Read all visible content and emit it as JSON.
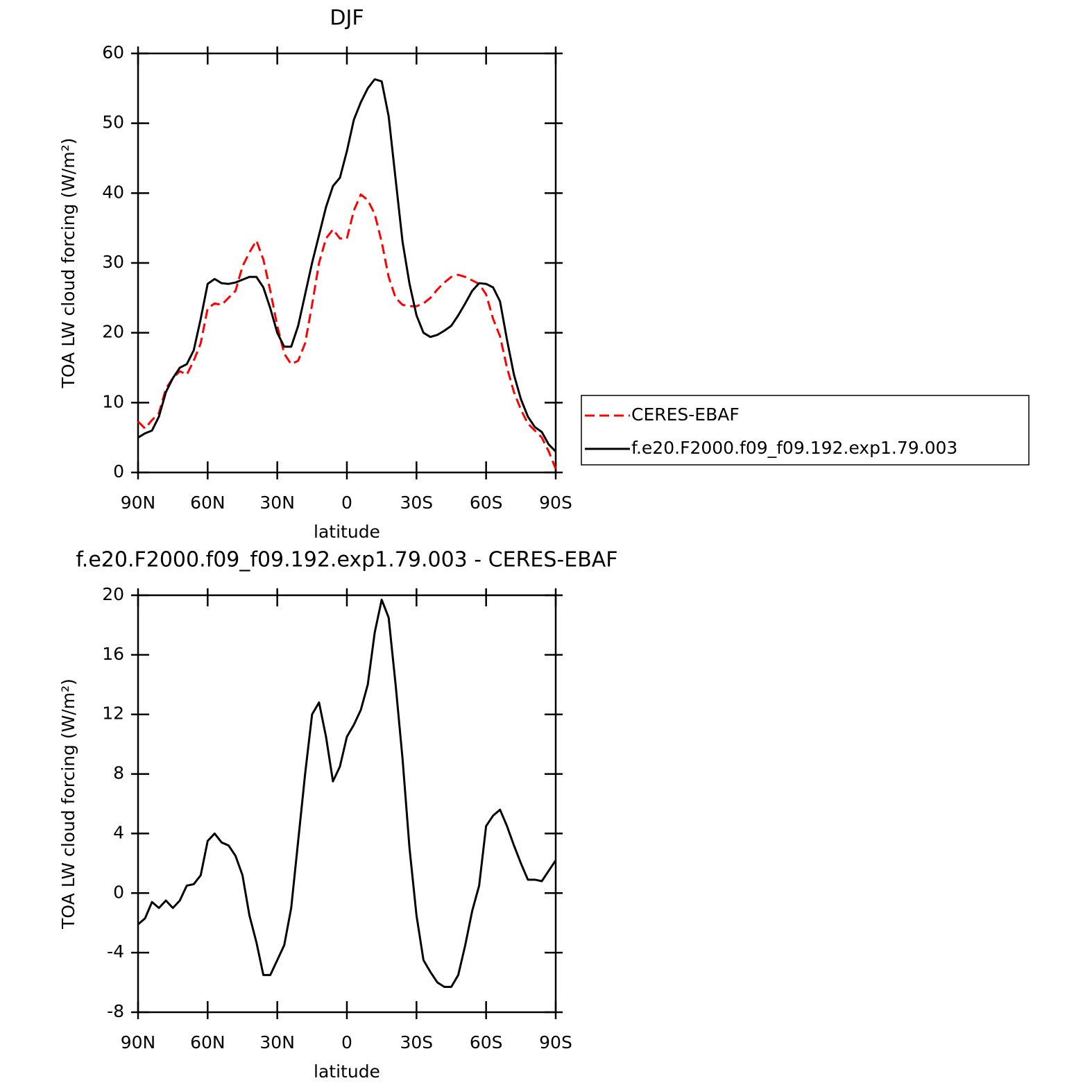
{
  "chart_data": [
    {
      "type": "line",
      "title": "DJF",
      "x_label": "latitude",
      "y_label": "TOA LW cloud forcing (W/m²)",
      "x": [
        90,
        87,
        84,
        81,
        78,
        75,
        72,
        69,
        66,
        63,
        60,
        57,
        54,
        51,
        48,
        45,
        42,
        39,
        36,
        33,
        30,
        27,
        24,
        21,
        18,
        15,
        12,
        9,
        6,
        3,
        0,
        -3,
        -6,
        -9,
        -12,
        -15,
        -18,
        -21,
        -24,
        -27,
        -30,
        -33,
        -36,
        -39,
        -42,
        -45,
        -48,
        -51,
        -54,
        -57,
        -60,
        -63,
        -66,
        -69,
        -72,
        -75,
        -78,
        -81,
        -84,
        -87,
        -90
      ],
      "series": [
        {
          "name": "CERES-EBAF",
          "color": "#ff0000",
          "dash": "dashed",
          "values": [
            7.3,
            6.3,
            7.5,
            8.5,
            12,
            13.5,
            14.5,
            14.0,
            16.0,
            18.5,
            23.5,
            24.2,
            24.0,
            25,
            26,
            29.5,
            31.5,
            33.2,
            30.5,
            26,
            21,
            17,
            15.5,
            16,
            18.5,
            24,
            30,
            33.5,
            34.8,
            33.5,
            33.5,
            37.5,
            39.8,
            39,
            37,
            33,
            28,
            25,
            24,
            23.8,
            23.8,
            24.2,
            25,
            26.2,
            27.2,
            28,
            28.3,
            28,
            27.5,
            27,
            25.5,
            22,
            19.5,
            15,
            11.5,
            9,
            7,
            6,
            5,
            3,
            0.5
          ]
        },
        {
          "name": "f.e20.F2000.f09_f09.192.exp1.79.003",
          "color": "#000000",
          "dash": "solid",
          "values": [
            5.0,
            5.6,
            6.0,
            8.0,
            11.5,
            13.5,
            15.0,
            15.5,
            17.5,
            22,
            27,
            27.7,
            27.1,
            27.0,
            27.2,
            27.6,
            28.0,
            28.0,
            26.5,
            23.5,
            20,
            18,
            18,
            21,
            25.5,
            30,
            34,
            38,
            41,
            42.2,
            46,
            50.5,
            53,
            55,
            56.3,
            56,
            51,
            42,
            33,
            27,
            22.5,
            20,
            19.4,
            19.7,
            20.3,
            21,
            22.5,
            24.2,
            26,
            27.1,
            27.0,
            26.5,
            24.5,
            19,
            14,
            10.5,
            8,
            6.5,
            5.8,
            4,
            3
          ]
        }
      ],
      "xlim": [
        90,
        -90
      ],
      "xticks": [
        {
          "value": 90,
          "label": "90N"
        },
        {
          "value": 60,
          "label": "60N"
        },
        {
          "value": 30,
          "label": "30N"
        },
        0,
        {
          "value": -30,
          "label": "30S"
        },
        {
          "value": -60,
          "label": "60S"
        },
        {
          "value": -90,
          "label": "90S"
        }
      ],
      "ylim": [
        0,
        60
      ],
      "yticks": [
        0,
        10,
        20,
        30,
        40,
        50,
        60
      ],
      "legend": "right"
    },
    {
      "type": "line",
      "title": "f.e20.F2000.f09_f09.192.exp1.79.003 - CERES-EBAF",
      "x_label": "latitude",
      "y_label": "TOA LW cloud forcing (W/m²)",
      "x": [
        90,
        87,
        84,
        81,
        78,
        75,
        72,
        69,
        66,
        63,
        60,
        57,
        54,
        51,
        48,
        45,
        42,
        39,
        36,
        33,
        30,
        27,
        24,
        21,
        18,
        15,
        12,
        9,
        6,
        3,
        0,
        -3,
        -6,
        -9,
        -12,
        -15,
        -18,
        -21,
        -24,
        -27,
        -30,
        -33,
        -36,
        -39,
        -42,
        -45,
        -48,
        -51,
        -54,
        -57,
        -60,
        -63,
        -66,
        -69,
        -72,
        -75,
        -78,
        -81,
        -84,
        -87,
        -90
      ],
      "series": [
        {
          "color": "#000000",
          "dash": "solid",
          "values": [
            -2.1,
            -1.7,
            -0.6,
            -1.0,
            -0.5,
            -1.0,
            -0.5,
            0.5,
            0.6,
            1.2,
            3.5,
            4.0,
            3.4,
            3.2,
            2.5,
            1.2,
            -1.5,
            -3.3,
            -5.5,
            -5.5,
            -4.5,
            -3.5,
            -1.0,
            3.5,
            8,
            12,
            12.8,
            10.5,
            7.5,
            8.5,
            10.5,
            11.3,
            12.3,
            14,
            17.5,
            19.7,
            18.5,
            14,
            9,
            3,
            -1.5,
            -4.5,
            -5.3,
            -6.0,
            -6.3,
            -6.3,
            -5.5,
            -3.5,
            -1.2,
            0.5,
            4.5,
            5.2,
            5.6,
            4.5,
            3.2,
            2.0,
            0.9,
            0.9,
            0.8,
            1.5,
            2.2
          ]
        }
      ],
      "xlim": [
        90,
        -90
      ],
      "xticks": [
        {
          "value": 90,
          "label": "90N"
        },
        {
          "value": 60,
          "label": "60N"
        },
        {
          "value": 30,
          "label": "30N"
        },
        0,
        {
          "value": -30,
          "label": "30S"
        },
        {
          "value": -60,
          "label": "60S"
        },
        {
          "value": -90,
          "label": "90S"
        }
      ],
      "ylim": [
        -8,
        20
      ],
      "yticks": [
        -8,
        -4,
        0,
        4,
        8,
        12,
        16,
        20
      ]
    }
  ]
}
